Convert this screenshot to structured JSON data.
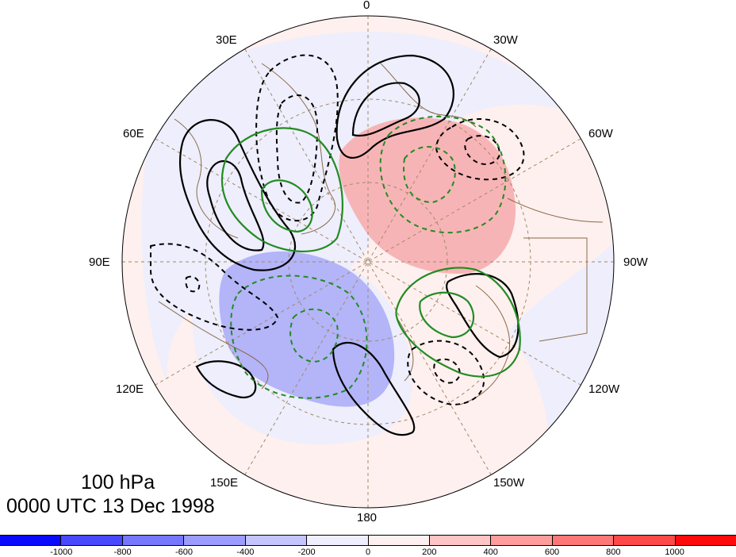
{
  "map": {
    "projection": "north-polar-stereographic",
    "longitude_labels": [
      "0",
      "30W",
      "60W",
      "90W",
      "120W",
      "150W",
      "180",
      "150E",
      "120E",
      "90E",
      "60E",
      "30E"
    ],
    "title_line1": "100 hPa",
    "title_line2": "0000 UTC 13 Dec 1998",
    "contour_styles": {
      "positive": "solid",
      "negative": "dashed",
      "primary_color": "#000000",
      "secondary_color": "#228b22"
    },
    "coastline_color": "#8b6b4a",
    "grid_color": "#a08a6a",
    "colorbar": {
      "labels": [
        "-1000",
        "-800",
        "-600",
        "-400",
        "-200",
        "0",
        "200",
        "400",
        "600",
        "800",
        "1000"
      ],
      "colors": [
        "#0a0aff",
        "#4848ff",
        "#7676ff",
        "#9c9cff",
        "#c4c4ff",
        "#eeeeff",
        "#fff0f0",
        "#ffc4c4",
        "#ff9c9c",
        "#ff7676",
        "#ff4848",
        "#ff0a0a"
      ]
    },
    "shading": {
      "background_positive": "#fdf0ee",
      "background_negative": "#eeeefc",
      "strong_positive": "#f7b4b6",
      "strong_negative": "#b4b4f8"
    }
  }
}
